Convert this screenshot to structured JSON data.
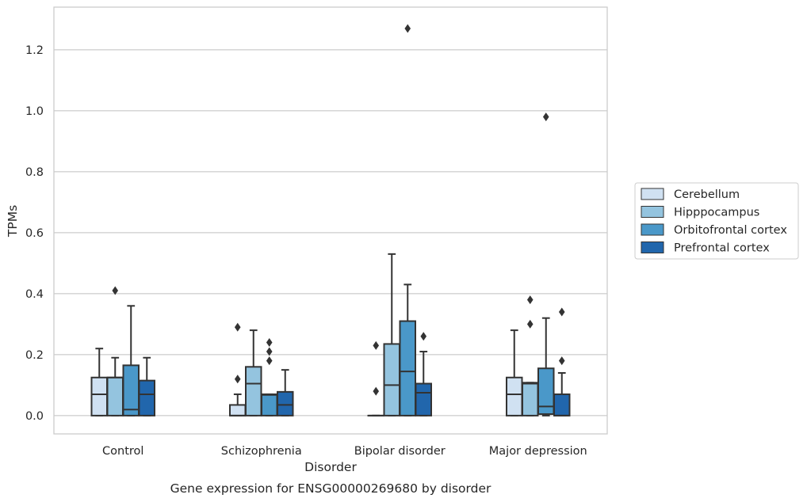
{
  "chart_data": {
    "type": "box",
    "title": "Gene expression for ENSG00000269680 by disorder",
    "xlabel": "Disorder",
    "ylabel": "TPMs",
    "ylim": [
      -0.06,
      1.34
    ],
    "yticks": [
      "0.0",
      "0.2",
      "0.4",
      "0.6",
      "0.8",
      "1.0",
      "1.2"
    ],
    "grid": "horizontal",
    "legend_position": "center-right",
    "categories": [
      "Control",
      "Schizophrenia",
      "Bipolar disorder",
      "Major depression"
    ],
    "series": [
      {
        "name": "Cerebellum",
        "color": "#d0e1f2",
        "boxes": [
          {
            "q1": 0.0,
            "median": 0.07,
            "q3": 0.125,
            "whisker_low": 0.0,
            "whisker_high": 0.22,
            "outliers": []
          },
          {
            "q1": 0.0,
            "median": 0.0,
            "q3": 0.035,
            "whisker_low": 0.0,
            "whisker_high": 0.07,
            "outliers": [
              0.12,
              0.29
            ]
          },
          {
            "q1": 0.0,
            "median": 0.0,
            "q3": 0.0,
            "whisker_low": 0.0,
            "whisker_high": 0.0,
            "outliers": [
              0.08,
              0.23
            ]
          },
          {
            "q1": 0.0,
            "median": 0.07,
            "q3": 0.125,
            "whisker_low": 0.0,
            "whisker_high": 0.28,
            "outliers": []
          }
        ]
      },
      {
        "name": "Hipppocampus",
        "color": "#94c4df",
        "boxes": [
          {
            "q1": 0.0,
            "median": 0.125,
            "q3": 0.125,
            "whisker_low": 0.0,
            "whisker_high": 0.19,
            "outliers": [
              0.41
            ]
          },
          {
            "q1": 0.0,
            "median": 0.105,
            "q3": 0.16,
            "whisker_low": 0.0,
            "whisker_high": 0.28,
            "outliers": []
          },
          {
            "q1": 0.0,
            "median": 0.1,
            "q3": 0.235,
            "whisker_low": 0.0,
            "whisker_high": 0.53,
            "outliers": []
          },
          {
            "q1": 0.0,
            "median": 0.105,
            "q3": 0.108,
            "whisker_low": 0.0,
            "whisker_high": 0.108,
            "outliers": [
              0.3,
              0.38
            ]
          }
        ]
      },
      {
        "name": "Orbitofrontal cortex",
        "color": "#4a98c9",
        "boxes": [
          {
            "q1": 0.0,
            "median": 0.02,
            "q3": 0.165,
            "whisker_low": 0.0,
            "whisker_high": 0.36,
            "outliers": []
          },
          {
            "q1": 0.0,
            "median": 0.068,
            "q3": 0.07,
            "whisker_low": 0.0,
            "whisker_high": 0.07,
            "outliers": [
              0.18,
              0.21,
              0.24
            ]
          },
          {
            "q1": 0.0,
            "median": 0.145,
            "q3": 0.31,
            "whisker_low": 0.0,
            "whisker_high": 0.43,
            "outliers": [
              1.27
            ]
          },
          {
            "q1": 0.005,
            "median": 0.03,
            "q3": 0.155,
            "whisker_low": 0.0,
            "whisker_high": 0.32,
            "outliers": [
              0.98
            ]
          }
        ]
      },
      {
        "name": "Prefrontal cortex",
        "color": "#2166ac",
        "boxes": [
          {
            "q1": 0.0,
            "median": 0.07,
            "q3": 0.115,
            "whisker_low": 0.0,
            "whisker_high": 0.19,
            "outliers": []
          },
          {
            "q1": 0.0,
            "median": 0.035,
            "q3": 0.078,
            "whisker_low": 0.0,
            "whisker_high": 0.15,
            "outliers": []
          },
          {
            "q1": 0.0,
            "median": 0.075,
            "q3": 0.105,
            "whisker_low": 0.0,
            "whisker_high": 0.21,
            "outliers": [
              0.26
            ]
          },
          {
            "q1": 0.0,
            "median": 0.0,
            "q3": 0.07,
            "whisker_low": 0.0,
            "whisker_high": 0.14,
            "outliers": [
              0.18,
              0.34
            ]
          }
        ]
      }
    ]
  }
}
